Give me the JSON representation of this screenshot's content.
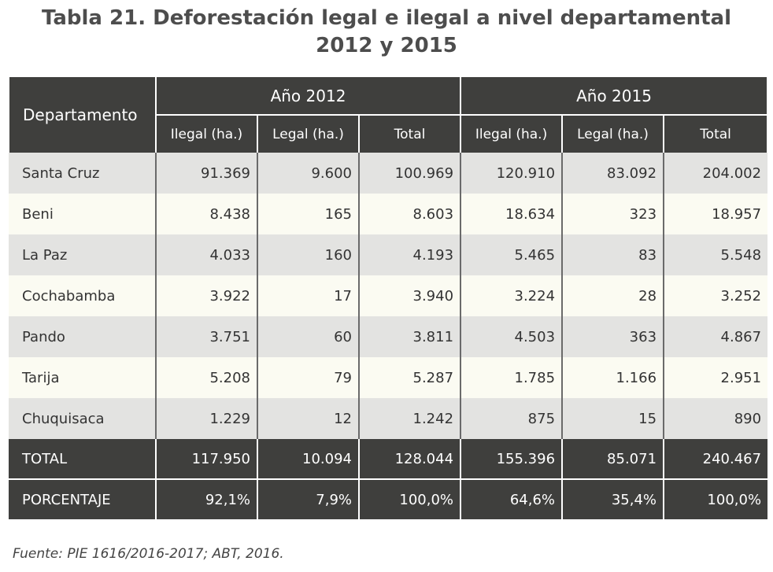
{
  "title": {
    "line1": "Tabla 21. Deforestación legal e ilegal a nivel departamental",
    "line2": "2012 y 2015"
  },
  "table": {
    "dept_header": "Departamento",
    "year_groups": [
      "Año 2012",
      "Año 2015"
    ],
    "sub_headers": [
      "Ilegal (ha.)",
      "Legal (ha.)",
      "Total",
      "Ilegal (ha.)",
      "Legal (ha.)",
      "Total"
    ],
    "rows": [
      {
        "dept": "Santa Cruz",
        "values": [
          "91.369",
          "9.600",
          "100.969",
          "120.910",
          "83.092",
          "204.002"
        ]
      },
      {
        "dept": "Beni",
        "values": [
          "8.438",
          "165",
          "8.603",
          "18.634",
          "323",
          "18.957"
        ]
      },
      {
        "dept": "La Paz",
        "values": [
          "4.033",
          "160",
          "4.193",
          "5.465",
          "83",
          "5.548"
        ]
      },
      {
        "dept": "Cochabamba",
        "values": [
          "3.922",
          "17",
          "3.940",
          "3.224",
          "28",
          "3.252"
        ]
      },
      {
        "dept": "Pando",
        "values": [
          "3.751",
          "60",
          "3.811",
          "4.503",
          "363",
          "4.867"
        ]
      },
      {
        "dept": "Tarija",
        "values": [
          "5.208",
          "79",
          "5.287",
          "1.785",
          "1.166",
          "2.951"
        ]
      },
      {
        "dept": "Chuquisaca",
        "values": [
          "1.229",
          "12",
          "1.242",
          "875",
          "15",
          "890"
        ]
      }
    ],
    "total": {
      "label": "TOTAL",
      "values": [
        "117.950",
        "10.094",
        "128.044",
        "155.396",
        "85.071",
        "240.467"
      ]
    },
    "percentage": {
      "label": "PORCENTAJE",
      "values": [
        "92,1%",
        "7,9%",
        "100,0%",
        "64,6%",
        "35,4%",
        "100,0%"
      ]
    }
  },
  "source": "Fuente: PIE 1616/2016-2017; ABT, 2016.",
  "colors": {
    "header_bg": "#3f3f3d",
    "row_alt_1": "#e3e3e1",
    "row_alt_2": "#fbfbf2",
    "title_text": "#4d4d4d"
  }
}
